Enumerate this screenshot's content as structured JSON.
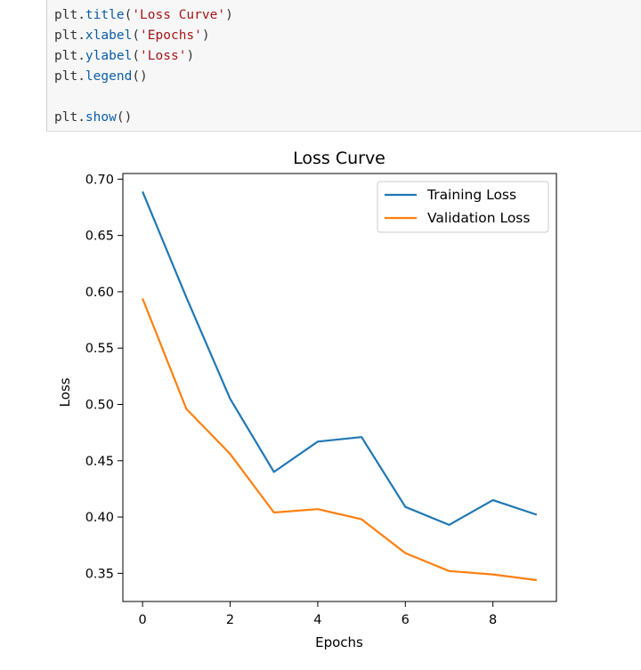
{
  "code": {
    "lines": [
      {
        "obj": "plt.",
        "fn": "title",
        "open": "(",
        "arg": "'Loss Curve'",
        "close": ")"
      },
      {
        "obj": "plt.",
        "fn": "xlabel",
        "open": "(",
        "arg": "'Epochs'",
        "close": ")"
      },
      {
        "obj": "plt.",
        "fn": "ylabel",
        "open": "(",
        "arg": "'Loss'",
        "close": ")"
      },
      {
        "obj": "plt.",
        "fn": "legend",
        "open": "()",
        "arg": "",
        "close": ""
      },
      {
        "obj": "",
        "fn": "",
        "open": "",
        "arg": "",
        "close": ""
      },
      {
        "obj": "plt.",
        "fn": "show",
        "open": "()",
        "arg": "",
        "close": ""
      }
    ]
  },
  "chart_data": {
    "type": "line",
    "title": "Loss Curve",
    "xlabel": "Epochs",
    "ylabel": "Loss",
    "xlim": [
      -0.45,
      9.45
    ],
    "ylim": [
      0.325,
      0.705
    ],
    "xticks": [
      "0",
      "2",
      "4",
      "6",
      "8"
    ],
    "yticks": [
      "0.35",
      "0.40",
      "0.45",
      "0.50",
      "0.55",
      "0.60",
      "0.65",
      "0.70"
    ],
    "grid": false,
    "legend_position": "top-right",
    "x": [
      0,
      1,
      2,
      3,
      4,
      5,
      6,
      7,
      8,
      9
    ],
    "series": [
      {
        "name": "Training Loss",
        "color": "#1f77b4",
        "values": [
          0.689,
          0.595,
          0.505,
          0.44,
          0.467,
          0.471,
          0.409,
          0.393,
          0.415,
          0.402
        ]
      },
      {
        "name": "Validation Loss",
        "color": "#ff7f0e",
        "values": [
          0.594,
          0.496,
          0.456,
          0.404,
          0.407,
          0.398,
          0.368,
          0.352,
          0.349,
          0.344
        ]
      }
    ]
  }
}
